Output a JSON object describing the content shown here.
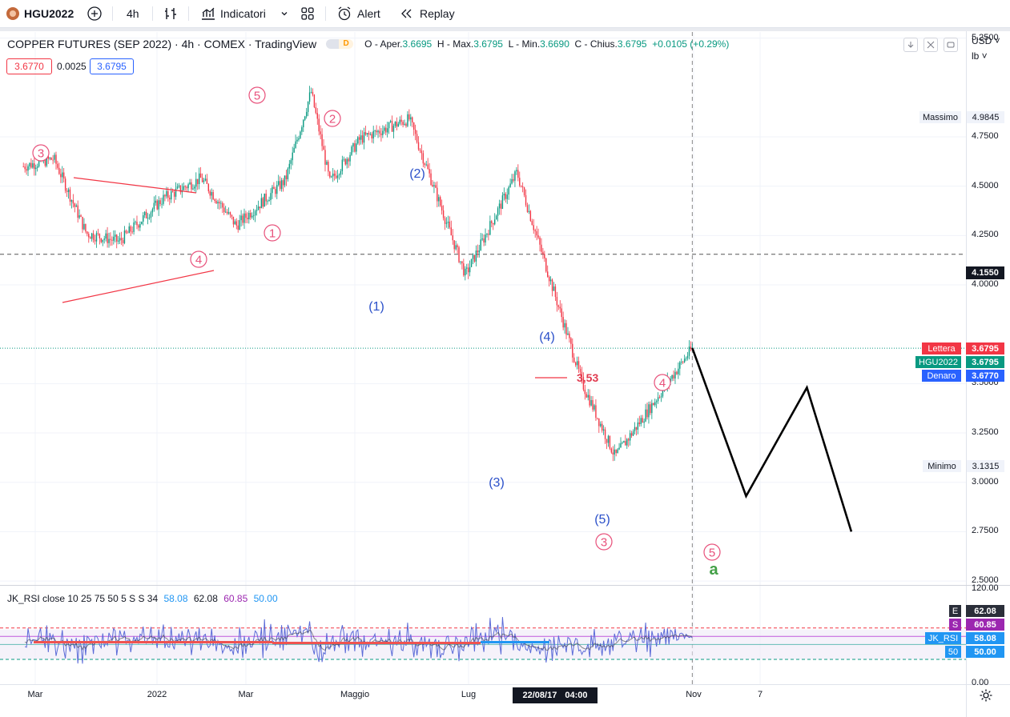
{
  "toolbar": {
    "symbol": "HGU2022",
    "interval": "4h",
    "indicators_label": "Indicatori",
    "alert_label": "Alert",
    "replay_label": "Replay"
  },
  "legend": {
    "title": "COPPER FUTURES (SEP 2022) · 4h · COMEX · TradingView",
    "badge": "D",
    "o_label": "O - Aper.",
    "o": "3.6695",
    "h_label": "H - Max.",
    "h": "3.6795",
    "l_label": "L - Min.",
    "l": "3.6690",
    "c_label": "C - Chius.",
    "c": "3.6795",
    "change": "+0.0105 (+0.29%)",
    "bid": "3.6770",
    "spread": "0.0025",
    "ask": "3.6795"
  },
  "price_axis": {
    "currency": "USD",
    "unit": "lb",
    "ticks": [
      "5.2500",
      "4.7500",
      "4.5000",
      "4.2500",
      "4.0000",
      "3.5000",
      "3.2500",
      "3.0000",
      "2.7500",
      "2.5000"
    ],
    "max_label": "Massimo",
    "max_value": "4.9845",
    "min_label": "Minimo",
    "min_value": "3.1315",
    "crosshair_value": "4.1550",
    "ask_label": "Lettera",
    "ask_value": "3.6795",
    "last_label": "HGU2022",
    "last_value": "3.6795",
    "bid_label": "Denaro",
    "bid_value": "3.6770"
  },
  "time_axis": {
    "ticks": [
      "Mar",
      "2022",
      "Mar",
      "Maggio",
      "Lug",
      "Nov",
      "7"
    ],
    "crosshair_date": "22/08/17",
    "crosshair_time": "04:00"
  },
  "annotations": {
    "level_label": "3,53",
    "final_label": "a"
  },
  "rsi": {
    "name": "JK_RSI",
    "params": "close 10 25 75 50 5 S S 34",
    "v1": "58.08",
    "v2": "62.08",
    "v3": "60.85",
    "v4": "50.00",
    "axis_top": "120.00",
    "axis_bottom": "0.00",
    "tag_e_label": "E",
    "tag_e_value": "62.08",
    "tag_s_label": "S",
    "tag_s_value": "60.85",
    "tag_jk_label": "JK_RSI",
    "tag_jk_value": "58.08",
    "tag_50_label": "50",
    "tag_50_value": "50.00"
  },
  "colors": {
    "up": "#089981",
    "down": "#f23645",
    "wave_red": "#e8517b",
    "wave_blue": "#2a4fc9",
    "rsi_line": "#5b6bd8",
    "rsi_band": "#ede7f6"
  },
  "chart_data": {
    "type": "candlestick",
    "symbol": "HGU2022",
    "ylim": [
      2.48,
      5.2
    ],
    "x_ticks": [
      "Mar",
      "2022",
      "Mar",
      "Maggio",
      "Lug",
      "Nov",
      "7"
    ],
    "price_path": [
      {
        "date": "2021-11-04",
        "price": 4.6
      },
      {
        "date": "2021-11-17",
        "price": 4.64
      },
      {
        "date": "2021-12-01",
        "price": 4.26
      },
      {
        "date": "2021-12-15",
        "price": 4.22
      },
      {
        "date": "2022-01-03",
        "price": 4.44
      },
      {
        "date": "2022-01-19",
        "price": 4.54
      },
      {
        "date": "2022-02-03",
        "price": 4.3
      },
      {
        "date": "2022-02-24",
        "price": 4.53
      },
      {
        "date": "2022-03-07",
        "price": 4.98
      },
      {
        "date": "2022-03-15",
        "price": 4.52
      },
      {
        "date": "2022-03-28",
        "price": 4.74
      },
      {
        "date": "2022-04-18",
        "price": 4.84
      },
      {
        "date": "2022-05-12",
        "price": 4.05
      },
      {
        "date": "2022-06-03",
        "price": 4.57
      },
      {
        "date": "2022-07-01",
        "price": 3.5
      },
      {
        "date": "2022-07-15",
        "price": 3.13
      },
      {
        "date": "2022-08-17",
        "price": 3.68
      }
    ],
    "projection": [
      {
        "date": "2022-08-17",
        "price": 3.68
      },
      {
        "date": "2022-09-09",
        "price": 2.93
      },
      {
        "date": "2022-10-05",
        "price": 3.48
      },
      {
        "date": "2022-10-24",
        "price": 2.75
      }
    ],
    "waves": [
      {
        "label": "3",
        "style": "circled"
      },
      {
        "label": "4",
        "style": "circled"
      },
      {
        "label": "5",
        "style": "circled"
      },
      {
        "label": "1",
        "style": "circled"
      },
      {
        "label": "2",
        "style": "circled"
      },
      {
        "label": "(1)",
        "style": "paren"
      },
      {
        "label": "(2)",
        "style": "paren"
      },
      {
        "label": "(3)",
        "style": "paren"
      },
      {
        "label": "(4)",
        "style": "paren"
      },
      {
        "label": "(5)",
        "style": "paren"
      },
      {
        "label": "3",
        "style": "circled"
      },
      {
        "label": "4",
        "style": "circled"
      },
      {
        "label": "5",
        "style": "circled"
      }
    ],
    "levels": {
      "crosshair": 4.155,
      "last": 3.6795,
      "annotated": 3.53
    },
    "rsi_range": [
      0,
      120
    ],
    "rsi_levels": {
      "upper": 70,
      "lower": 30,
      "mid": 50
    },
    "rsi_last": {
      "jk_rsi": 58.08,
      "e": 62.08,
      "s": 60.85,
      "mid": 50.0
    }
  }
}
